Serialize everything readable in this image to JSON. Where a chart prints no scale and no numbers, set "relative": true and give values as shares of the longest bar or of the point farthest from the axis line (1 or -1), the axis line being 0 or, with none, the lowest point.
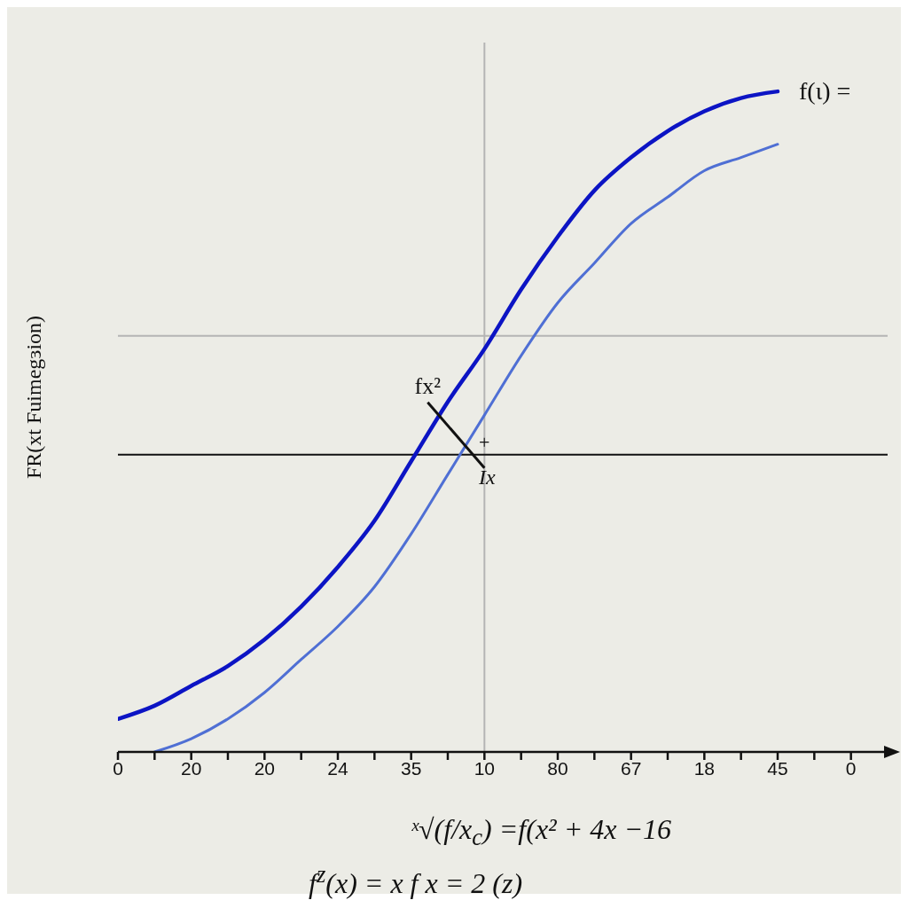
{
  "chart_data": {
    "type": "line",
    "relative": true,
    "ylabel": "FR(xt Fuimegɜion)",
    "categories": [
      "0",
      null,
      "20",
      null,
      "20",
      null,
      "24",
      null,
      "35",
      null,
      "10",
      null,
      "80",
      null,
      "67",
      null,
      "18",
      null,
      "45",
      null,
      "0"
    ],
    "series": [
      {
        "color": "#0c14c4",
        "values": [
          0.05,
          0.07,
          0.1,
          0.13,
          0.17,
          0.22,
          0.28,
          0.35,
          0.44,
          0.53,
          0.61,
          0.7,
          0.78,
          0.85,
          0.9,
          0.94,
          0.97,
          0.99,
          1,
          null,
          null
        ]
      },
      {
        "color": "#4f6fd4",
        "values": [
          null,
          0,
          0.02,
          0.05,
          0.09,
          0.14,
          0.19,
          0.25,
          0.33,
          0.42,
          0.51,
          0.6,
          0.68,
          0.74,
          0.8,
          0.84,
          0.88,
          0.9,
          0.92,
          null,
          null
        ]
      }
    ],
    "ref_lines": [
      {
        "axis": "x",
        "value": "10",
        "color": "#b4b4b4"
      },
      {
        "axis": "y",
        "value": 0.63,
        "color": "#b4b4b4"
      },
      {
        "axis": "y",
        "value": 0.45,
        "color": "#111111"
      }
    ],
    "annotations": [
      {
        "text": "f(ι) =",
        "x": "45",
        "y": 1
      },
      {
        "text": "fx²",
        "x": "10",
        "y": 0.43
      },
      "+",
      "Ix",
      "ˣ√(f/x$_{c}$) =f(x² + 4x −16",
      "f$^{z}$(x) = x f x = 2 (z)"
    ],
    "marker": "none",
    "line_style": "solid"
  }
}
